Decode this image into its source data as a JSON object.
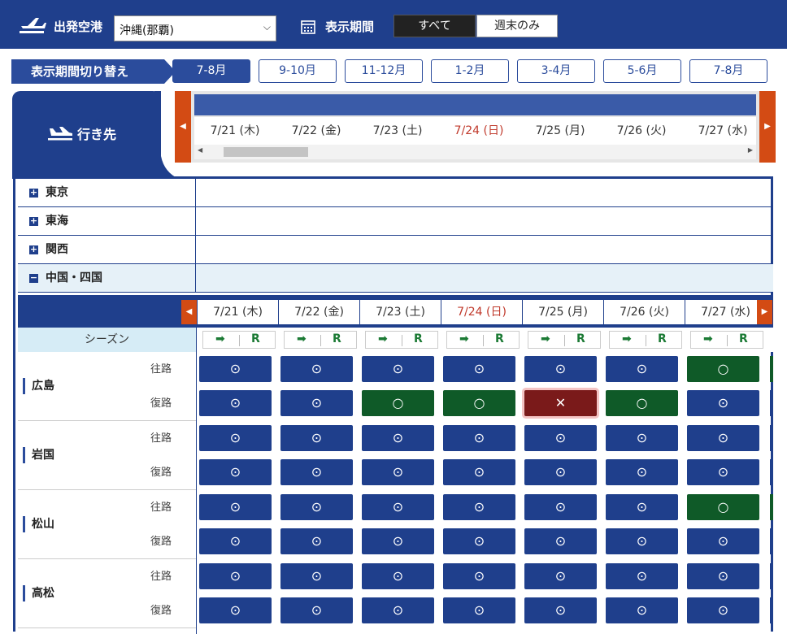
{
  "header": {
    "airport_label": "出発空港",
    "airport_value": "沖縄(那覇)",
    "period_label": "表示期間",
    "toggle": [
      "すべて",
      "週末のみ"
    ]
  },
  "period_switch": {
    "label": "表示期間切り替え",
    "tabs": [
      "7-8月",
      "9-10月",
      "11-12月",
      "1-2月",
      "3-4月",
      "5-6月",
      "7-8月"
    ],
    "active_index": 0
  },
  "destination_label": "行き先",
  "dates": [
    "7/21 (木)",
    "7/22 (金)",
    "7/23 (土)",
    "7/24 (日)",
    "7/25 (月)",
    "7/26 (火)",
    "7/27 (水)"
  ],
  "regions": [
    {
      "name": "東京",
      "open": false,
      "box": "+"
    },
    {
      "name": "東海",
      "open": false,
      "box": "+"
    },
    {
      "name": "関西",
      "open": false,
      "box": "+"
    },
    {
      "name": "中国・四国",
      "open": true,
      "box": "−"
    }
  ],
  "season": {
    "label": "シーズン",
    "arrow": "➡",
    "r": "R"
  },
  "route_labels": {
    "outbound": "往路",
    "return": "復路"
  },
  "symbols": {
    "available": "⊙",
    "few": "○",
    "none": "✕"
  },
  "cities": [
    {
      "name": "広島",
      "outbound": [
        "available",
        "available",
        "available",
        "available",
        "available",
        "available",
        "few"
      ],
      "return": [
        "available",
        "available",
        "few",
        "few",
        "none",
        "few",
        "available"
      ]
    },
    {
      "name": "岩国",
      "outbound": [
        "available",
        "available",
        "available",
        "available",
        "available",
        "available",
        "available"
      ],
      "return": [
        "available",
        "available",
        "available",
        "available",
        "available",
        "available",
        "available"
      ]
    },
    {
      "name": "松山",
      "outbound": [
        "available",
        "available",
        "available",
        "available",
        "available",
        "available",
        "few"
      ],
      "return": [
        "available",
        "available",
        "available",
        "available",
        "available",
        "available",
        "available"
      ]
    },
    {
      "name": "高松",
      "outbound": [
        "available",
        "available",
        "available",
        "available",
        "available",
        "available",
        "available"
      ],
      "return": [
        "available",
        "available",
        "available",
        "available",
        "available",
        "available",
        "available"
      ]
    }
  ],
  "colors": {
    "primary": "#1f3f8c",
    "accent": "#d34b14",
    "few": "#0f5a28",
    "none": "#7a1a1a",
    "sunday": "#c0392b"
  }
}
